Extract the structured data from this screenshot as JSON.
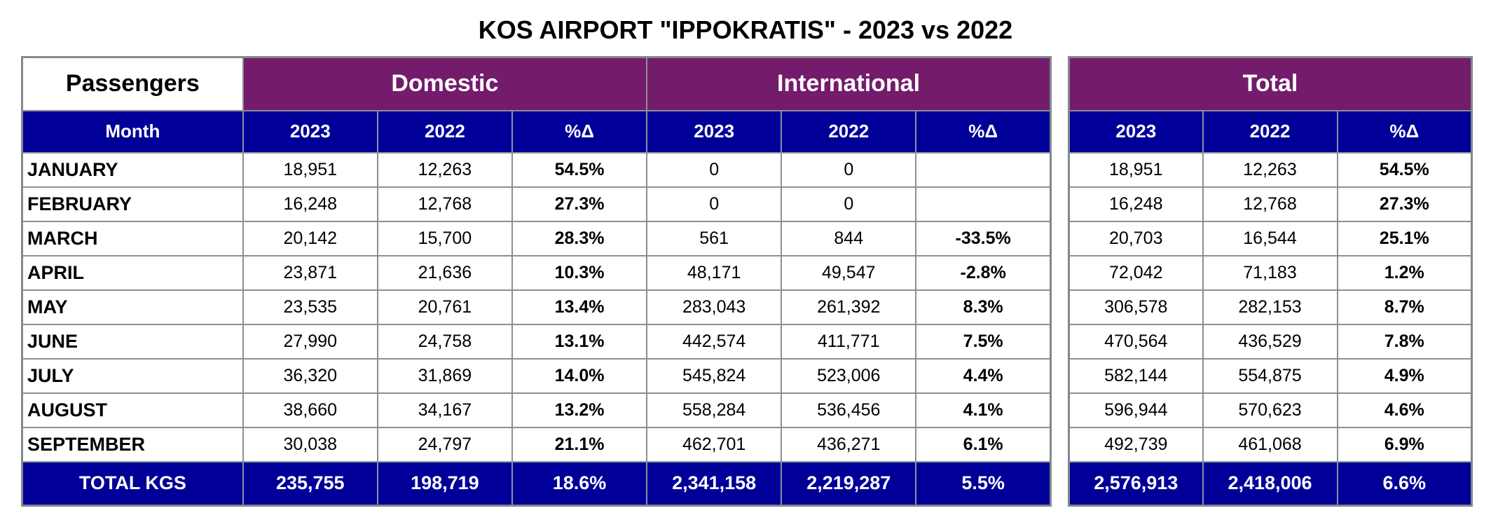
{
  "title": "KOS AIRPORT \"IPPOKRATIS\" - 2023 vs 2022",
  "colors": {
    "group_header": "#741b6b",
    "sub_header": "#000099",
    "grid": "#8a9098"
  },
  "main_table": {
    "corner_label": "Passengers",
    "groups": [
      "Domestic",
      "International"
    ],
    "month_header": "Month",
    "sub_headers": [
      "2023",
      "2022",
      "%Δ",
      "2023",
      "2022",
      "%Δ"
    ],
    "rows": [
      {
        "month": "JANUARY",
        "cells": [
          "18,951",
          "12,263",
          "54.5%",
          "0",
          "0",
          ""
        ]
      },
      {
        "month": "FEBRUARY",
        "cells": [
          "16,248",
          "12,768",
          "27.3%",
          "0",
          "0",
          ""
        ]
      },
      {
        "month": "MARCH",
        "cells": [
          "20,142",
          "15,700",
          "28.3%",
          "561",
          "844",
          "-33.5%"
        ]
      },
      {
        "month": "APRIL",
        "cells": [
          "23,871",
          "21,636",
          "10.3%",
          "48,171",
          "49,547",
          "-2.8%"
        ]
      },
      {
        "month": "MAY",
        "cells": [
          "23,535",
          "20,761",
          "13.4%",
          "283,043",
          "261,392",
          "8.3%"
        ]
      },
      {
        "month": "JUNE",
        "cells": [
          "27,990",
          "24,758",
          "13.1%",
          "442,574",
          "411,771",
          "7.5%"
        ]
      },
      {
        "month": "JULY",
        "cells": [
          "36,320",
          "31,869",
          "14.0%",
          "545,824",
          "523,006",
          "4.4%"
        ]
      },
      {
        "month": "AUGUST",
        "cells": [
          "38,660",
          "34,167",
          "13.2%",
          "558,284",
          "536,456",
          "4.1%"
        ]
      },
      {
        "month": "SEPTEMBER",
        "cells": [
          "30,038",
          "24,797",
          "21.1%",
          "462,701",
          "436,271",
          "6.1%"
        ]
      }
    ],
    "total_row": {
      "label": "TOTAL KGS",
      "cells": [
        "235,755",
        "198,719",
        "18.6%",
        "2,341,158",
        "2,219,287",
        "5.5%"
      ]
    }
  },
  "total_table": {
    "group": "Total",
    "sub_headers": [
      "2023",
      "2022",
      "%Δ"
    ],
    "rows": [
      [
        "18,951",
        "12,263",
        "54.5%"
      ],
      [
        "16,248",
        "12,768",
        "27.3%"
      ],
      [
        "20,703",
        "16,544",
        "25.1%"
      ],
      [
        "72,042",
        "71,183",
        "1.2%"
      ],
      [
        "306,578",
        "282,153",
        "8.7%"
      ],
      [
        "470,564",
        "436,529",
        "7.8%"
      ],
      [
        "582,144",
        "554,875",
        "4.9%"
      ],
      [
        "596,944",
        "570,623",
        "4.6%"
      ],
      [
        "492,739",
        "461,068",
        "6.9%"
      ]
    ],
    "total_row": [
      "2,576,913",
      "2,418,006",
      "6.6%"
    ]
  }
}
